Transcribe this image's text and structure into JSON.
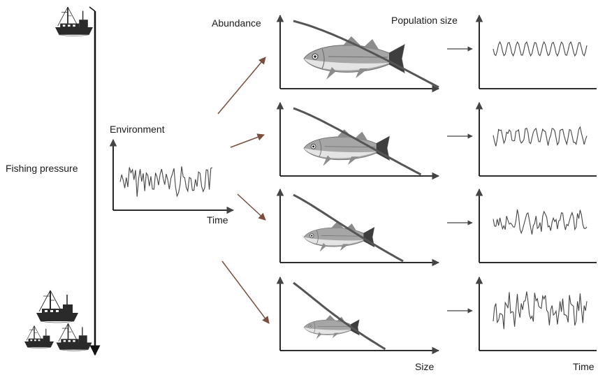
{
  "labels": {
    "fishing_pressure": "Fishing pressure",
    "environment": "Environment",
    "time_env": "Time",
    "abundance": "Abundance",
    "population_size": "Population size",
    "size": "Size",
    "time_pop": "Time"
  },
  "colors": {
    "axis": "#111111",
    "arrow": "#7a4e3e",
    "curve": "#555555",
    "signal": "#444444",
    "fish_body": "#9a9a9a",
    "fish_dark": "#4a4a4a",
    "boat": "#2a2a2a"
  },
  "icons": [
    "fishing-boat-icon",
    "fish-icon"
  ],
  "regimes": [
    {
      "name": "low-fishing",
      "fish_scale": 1.0,
      "pop_noise": 0.0,
      "pop_regular": true
    },
    {
      "name": "moderate-fishing",
      "fish_scale": 0.85,
      "pop_noise": 0.25,
      "pop_regular": false
    },
    {
      "name": "high-fishing",
      "fish_scale": 0.7,
      "pop_noise": 0.6,
      "pop_regular": false
    },
    {
      "name": "very-high-fishing",
      "fish_scale": 0.55,
      "pop_noise": 1.0,
      "pop_regular": false
    }
  ]
}
